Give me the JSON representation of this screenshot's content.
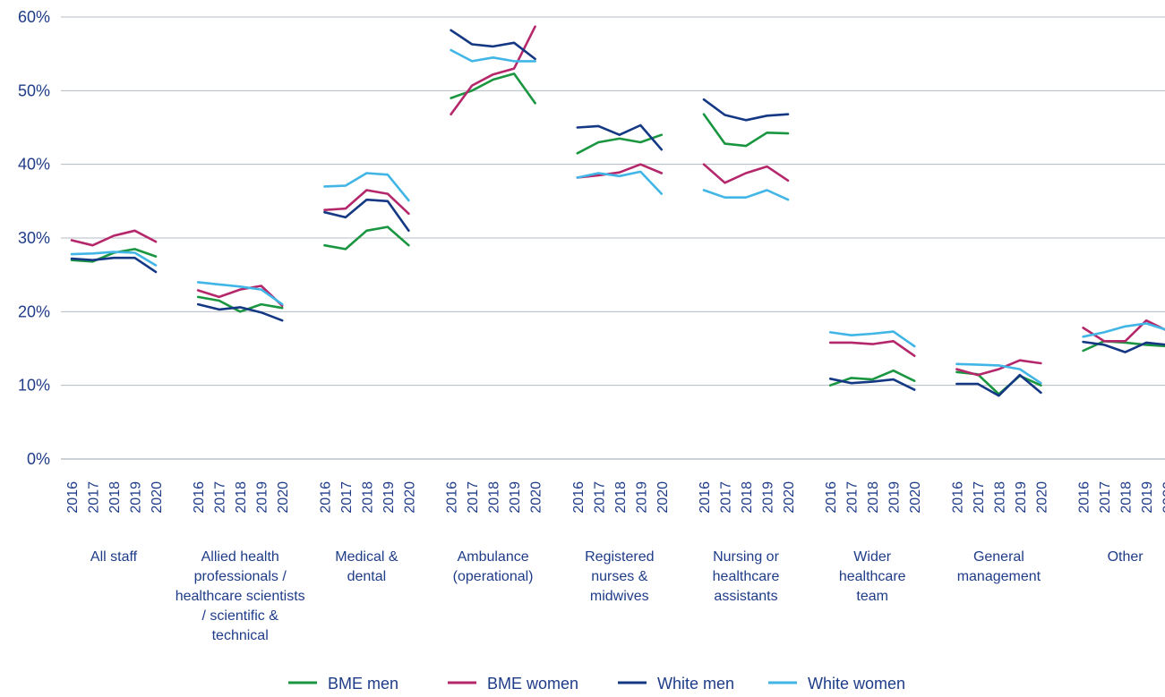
{
  "chart_data": {
    "type": "line",
    "ylim": [
      0,
      60
    ],
    "yticks": [
      "0%",
      "10%",
      "20%",
      "30%",
      "40%",
      "50%",
      "60%"
    ],
    "years": [
      "2016",
      "2017",
      "2018",
      "2019",
      "2020"
    ],
    "groups": [
      {
        "lines": [
          "All staff"
        ]
      },
      {
        "lines": [
          "Allied health",
          "professionals /",
          "healthcare scientists",
          "/ scientific &",
          "technical"
        ]
      },
      {
        "lines": [
          "Medical &",
          "dental"
        ]
      },
      {
        "lines": [
          "Ambulance",
          "(operational)"
        ]
      },
      {
        "lines": [
          "Registered",
          "nurses &",
          "midwives"
        ]
      },
      {
        "lines": [
          "Nursing or",
          "healthcare",
          "assistants"
        ]
      },
      {
        "lines": [
          "Wider",
          "healthcare",
          "team"
        ]
      },
      {
        "lines": [
          "General",
          "management"
        ]
      },
      {
        "lines": [
          "Other"
        ]
      }
    ],
    "series": [
      {
        "name": "BME men",
        "color": "#1a9641",
        "values": [
          [
            27.0,
            26.8,
            28.0,
            28.5,
            27.5
          ],
          [
            22.0,
            21.5,
            20.0,
            21.0,
            20.5
          ],
          [
            29.0,
            28.5,
            31.0,
            31.5,
            29.0
          ],
          [
            49.0,
            50.0,
            51.5,
            52.3,
            48.3
          ],
          [
            41.5,
            43.0,
            43.5,
            43.0,
            44.0
          ],
          [
            46.8,
            42.8,
            42.5,
            44.3,
            44.2
          ],
          [
            10.0,
            11.0,
            10.8,
            12.0,
            10.6
          ],
          [
            11.8,
            11.5,
            8.8,
            11.3,
            10.0
          ],
          [
            14.7,
            16.0,
            15.8,
            15.5,
            15.3
          ]
        ]
      },
      {
        "name": "BME women",
        "color": "#b5276b",
        "values": [
          [
            29.7,
            29.0,
            30.3,
            31.0,
            29.5
          ],
          [
            22.9,
            22.0,
            23.0,
            23.5,
            20.8
          ],
          [
            33.8,
            34.0,
            36.5,
            36.0,
            33.3
          ],
          [
            46.8,
            50.7,
            52.2,
            53.0,
            58.7
          ],
          [
            38.2,
            38.5,
            38.9,
            40.0,
            38.8
          ],
          [
            40.0,
            37.5,
            38.8,
            39.7,
            37.8
          ],
          [
            15.8,
            15.8,
            15.6,
            16.0,
            14.0
          ],
          [
            12.2,
            11.4,
            12.2,
            13.4,
            13.0
          ],
          [
            17.8,
            16.0,
            16.0,
            18.8,
            17.4
          ]
        ]
      },
      {
        "name": "White men",
        "color": "#143883",
        "values": [
          [
            27.2,
            27.0,
            27.3,
            27.3,
            25.4
          ],
          [
            21.0,
            20.3,
            20.6,
            19.9,
            18.8
          ],
          [
            33.5,
            32.8,
            35.2,
            35.0,
            31.0
          ],
          [
            58.2,
            56.3,
            56.0,
            56.5,
            54.3
          ],
          [
            45.0,
            45.2,
            44.0,
            45.3,
            42.0
          ],
          [
            48.8,
            46.7,
            46.0,
            46.6,
            46.8
          ],
          [
            10.9,
            10.3,
            10.5,
            10.8,
            9.4
          ],
          [
            10.2,
            10.2,
            8.6,
            11.4,
            9.0
          ],
          [
            15.9,
            15.5,
            14.5,
            15.8,
            15.5
          ]
        ]
      },
      {
        "name": "White women",
        "color": "#41b6e6",
        "values": [
          [
            27.8,
            27.9,
            28.1,
            28.0,
            26.3
          ],
          [
            24.0,
            23.7,
            23.4,
            23.0,
            21.0
          ],
          [
            37.0,
            37.1,
            38.8,
            38.6,
            35.1
          ],
          [
            55.5,
            54.0,
            54.5,
            54.0,
            54.0
          ],
          [
            38.2,
            38.8,
            38.4,
            39.0,
            36.0
          ],
          [
            36.5,
            35.5,
            35.5,
            36.5,
            35.2
          ],
          [
            17.2,
            16.8,
            17.0,
            17.3,
            15.3
          ],
          [
            12.9,
            12.8,
            12.7,
            12.2,
            10.3
          ],
          [
            16.6,
            17.2,
            18.0,
            18.4,
            17.5
          ]
        ]
      }
    ],
    "grid": true,
    "legend_position": "bottom"
  }
}
